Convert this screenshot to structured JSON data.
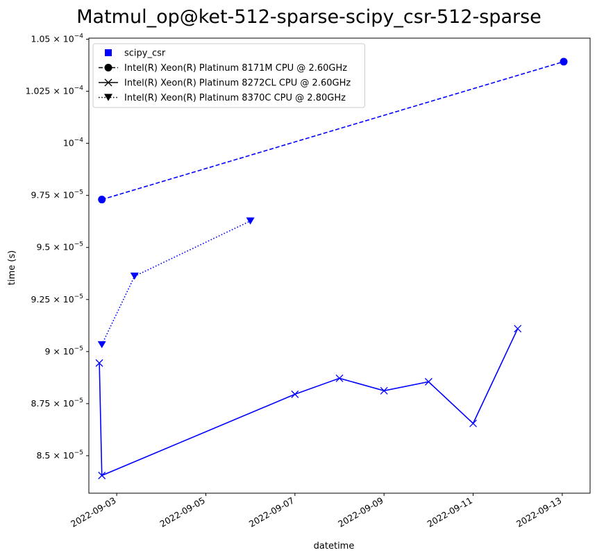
{
  "chart_data": {
    "type": "line",
    "title": "Matmul_op@ket-512-sparse-scipy_csr-512-sparse",
    "xlabel": "datetime",
    "ylabel": "time (s)",
    "x_type": "datetime",
    "xlim": [
      "2022-09-02T09:00",
      "2022-09-13T15:00"
    ],
    "ylim": [
      8.32e-05,
      0.00010505
    ],
    "x_ticks": [
      {
        "date": "2022-09-03",
        "label": "2022-09-03"
      },
      {
        "date": "2022-09-05",
        "label": "2022-09-05"
      },
      {
        "date": "2022-09-07",
        "label": "2022-09-07"
      },
      {
        "date": "2022-09-09",
        "label": "2022-09-09"
      },
      {
        "date": "2022-09-11",
        "label": "2022-09-11"
      },
      {
        "date": "2022-09-13",
        "label": "2022-09-13"
      }
    ],
    "y_ticks": [
      {
        "value": 8.5e-05,
        "mantissa": "8.5",
        "exp": "−5"
      },
      {
        "value": 8.75e-05,
        "mantissa": "8.75",
        "exp": "−5"
      },
      {
        "value": 9e-05,
        "mantissa": "9",
        "exp": "−5"
      },
      {
        "value": 9.25e-05,
        "mantissa": "9.25",
        "exp": "−5"
      },
      {
        "value": 9.5e-05,
        "mantissa": "9.5",
        "exp": "−5"
      },
      {
        "value": 9.75e-05,
        "mantissa": "9.75",
        "exp": "−5"
      },
      {
        "value": 0.0001,
        "mantissa": "",
        "exp": "−4"
      },
      {
        "value": 0.0001025,
        "mantissa": "1.025",
        "exp": "−4"
      },
      {
        "value": 0.000105,
        "mantissa": "1.05",
        "exp": "−4"
      }
    ],
    "grid": false,
    "legend_position": "top-left",
    "legend": [
      {
        "label": "scipy_csr",
        "marker": "square",
        "line": "none",
        "color": "#0000ff"
      },
      {
        "label": "Intel(R) Xeon(R) Platinum 8171M CPU @ 2.60GHz",
        "marker": "circle",
        "line": "dashed",
        "color": "#000000"
      },
      {
        "label": "Intel(R) Xeon(R) Platinum 8272CL CPU @ 2.60GHz",
        "marker": "x",
        "line": "solid",
        "color": "#000000"
      },
      {
        "label": "Intel(R) Xeon(R) Platinum 8370C CPU @ 2.80GHz",
        "marker": "triangle-down",
        "line": "dotted",
        "color": "#000000"
      }
    ],
    "series": [
      {
        "name": "Intel(R) Xeon(R) Platinum 8171M CPU @ 2.60GHz",
        "color": "#0000ff",
        "line": "dashed",
        "marker": "circle",
        "x": [
          "2022-09-02T16:00",
          "2022-09-13T00:48"
        ],
        "y": [
          9.73e-05,
          0.00010392
        ]
      },
      {
        "name": "Intel(R) Xeon(R) Platinum 8272CL CPU @ 2.60GHz",
        "color": "#0000ff",
        "line": "solid",
        "marker": "x",
        "x": [
          "2022-09-02T14:38",
          "2022-09-02T16:00",
          "2022-09-07T00:00",
          "2022-09-08T00:00",
          "2022-09-09T00:00",
          "2022-09-10T00:00",
          "2022-09-11T00:00",
          "2022-09-12T00:00"
        ],
        "y": [
          8.945e-05,
          8.405e-05,
          8.795e-05,
          8.872e-05,
          8.812e-05,
          8.855e-05,
          8.655e-05,
          9.11e-05
        ]
      },
      {
        "name": "Intel(R) Xeon(R) Platinum 8370C CPU @ 2.80GHz",
        "color": "#0000ff",
        "line": "dotted",
        "marker": "triangle-down",
        "x": [
          "2022-09-02T16:00",
          "2022-09-03T09:36",
          "2022-09-06T00:00"
        ],
        "y": [
          9.033e-05,
          9.362e-05,
          9.627e-05
        ]
      }
    ]
  }
}
